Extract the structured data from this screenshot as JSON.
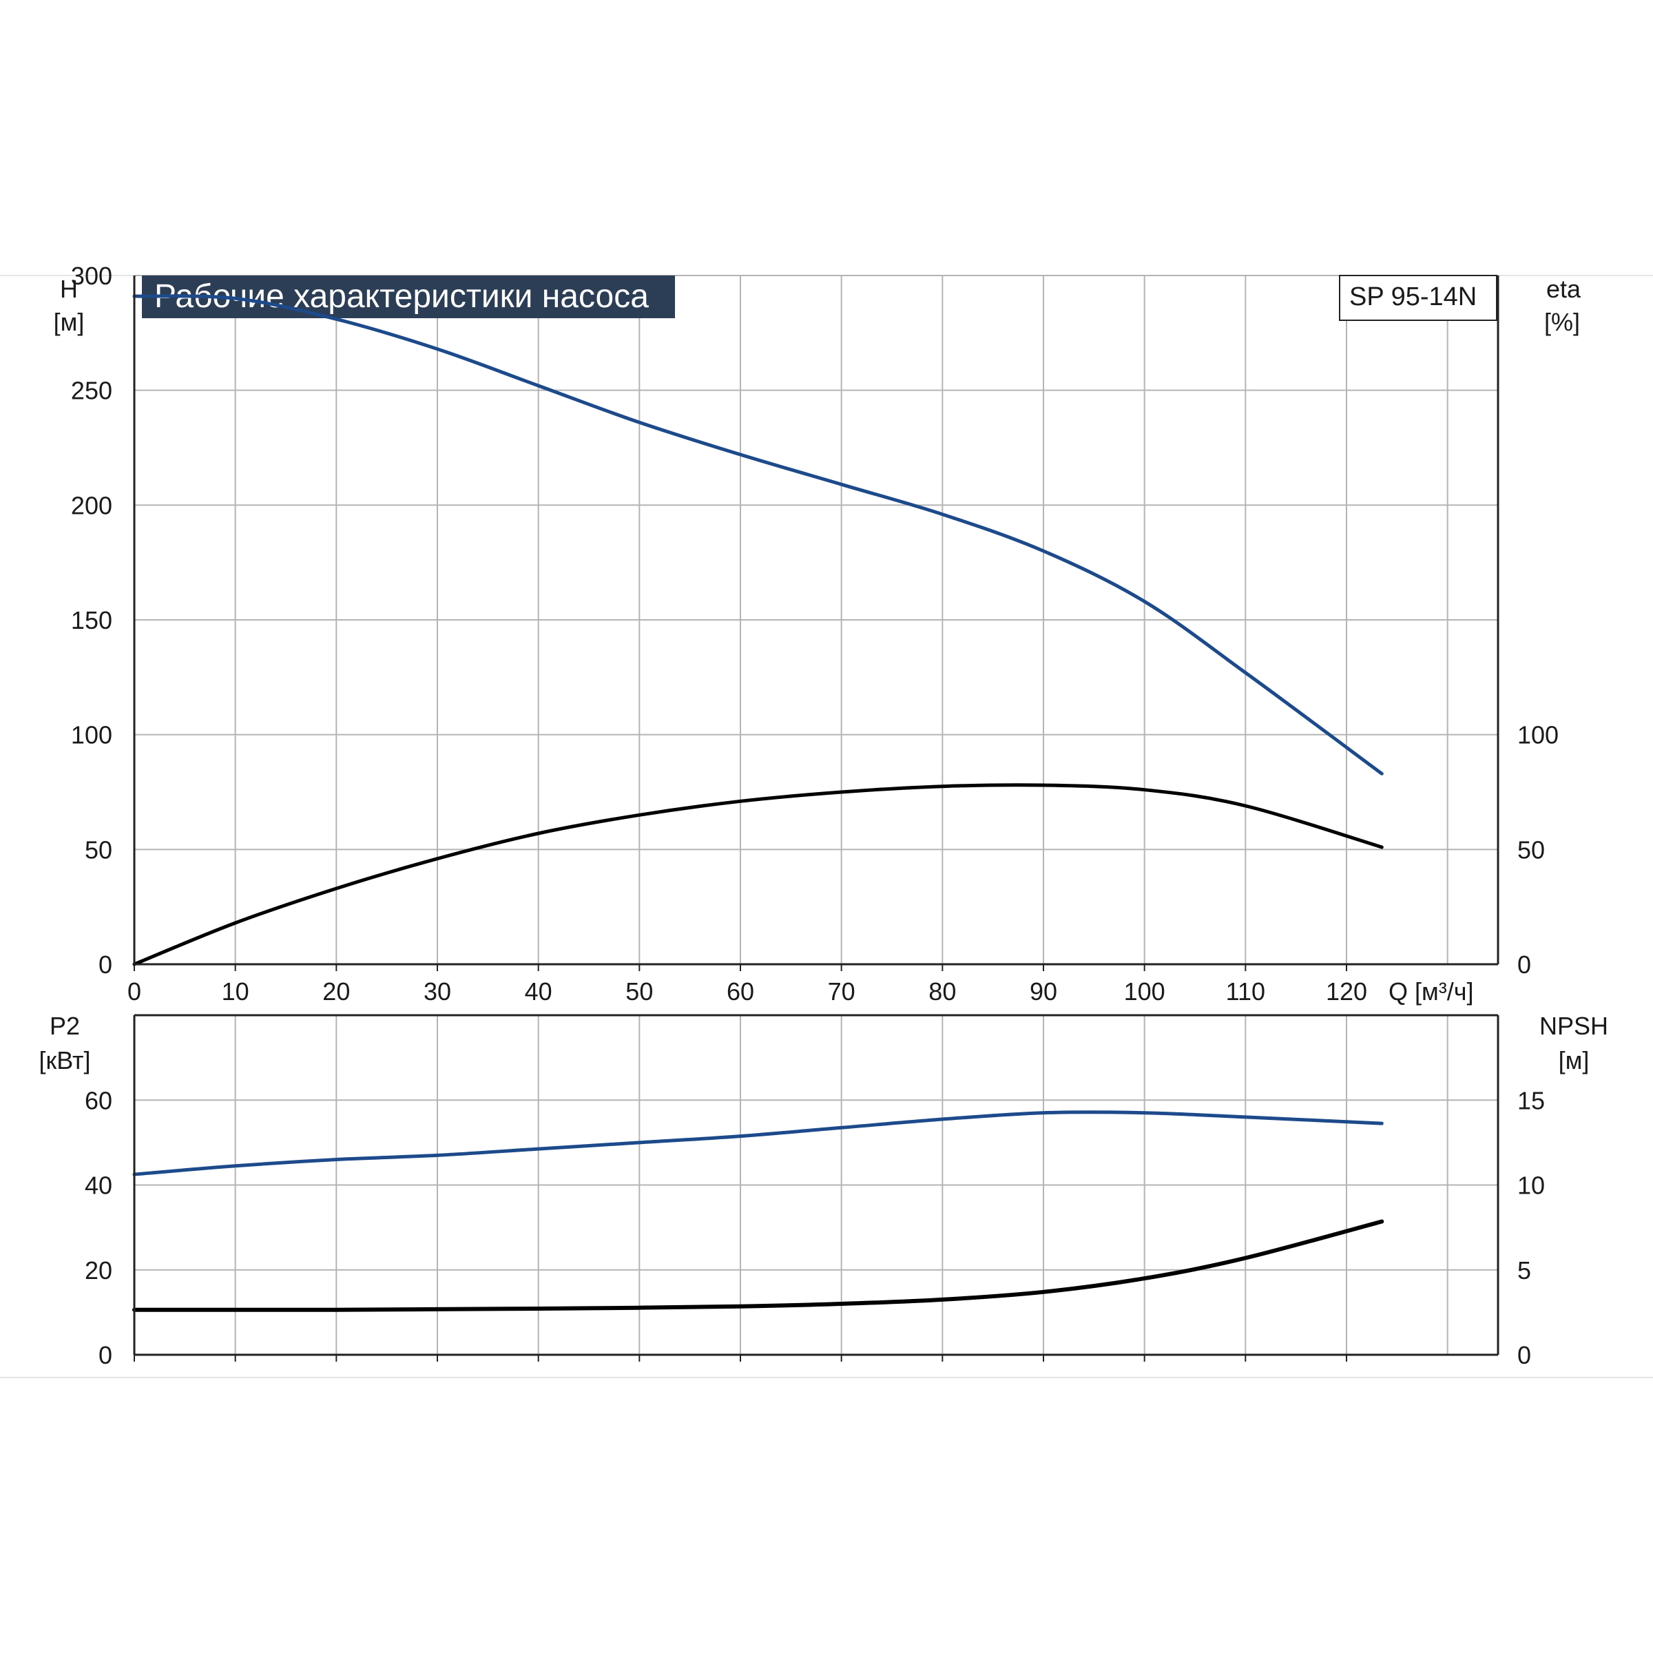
{
  "title": "Рабочие характеристики насоса",
  "model": "SP 95-14N",
  "colors": {
    "background": "#ffffff",
    "grid": "#b4b4b4",
    "axis": "#222222",
    "title_bg": "#2c3e55",
    "title_text": "#ffffff",
    "blue_curve": "#1d4a8a",
    "black_curve": "#000000"
  },
  "x_axis": {
    "label": "Q [м³/ч]",
    "range": [
      0,
      135
    ],
    "ticks": [
      0,
      10,
      20,
      30,
      40,
      50,
      60,
      70,
      80,
      90,
      100,
      110,
      120
    ]
  },
  "top_panel": {
    "left_axis": {
      "name": "H",
      "unit": "[м]",
      "range": [
        0,
        300
      ],
      "ticks": [
        0,
        50,
        100,
        150,
        200,
        250,
        300
      ]
    },
    "right_axis": {
      "name": "eta",
      "unit": "[%]",
      "range": [
        0,
        300
      ],
      "ticks": [
        0,
        50,
        100
      ]
    }
  },
  "bottom_panel": {
    "left_axis": {
      "name": "P2",
      "unit": "[кВт]",
      "range": [
        0,
        80
      ],
      "ticks": [
        0,
        20,
        40,
        60
      ]
    },
    "right_axis": {
      "name": "NPSH",
      "unit": "[м]",
      "range": [
        0,
        20
      ],
      "ticks": [
        0,
        5,
        10,
        15
      ]
    }
  },
  "chart_data": [
    {
      "type": "line",
      "panel": "top",
      "title": "Рабочие характеристики насоса",
      "xlabel": "Q [м³/ч]",
      "ylabel": "H [м]",
      "y2label": "eta [%]",
      "xlim": [
        0,
        135
      ],
      "ylim": [
        0,
        300
      ],
      "grid": true,
      "series": [
        {
          "axis": "left",
          "color": "#1d4a8a",
          "x": [
            0,
            10,
            20,
            30,
            40,
            50,
            60,
            70,
            80,
            90,
            100,
            110,
            123.5
          ],
          "y": [
            291,
            290,
            281,
            268,
            252,
            236,
            222,
            209,
            196,
            180,
            158,
            127,
            83
          ]
        },
        {
          "axis": "right",
          "color": "#000000",
          "x": [
            0,
            10,
            20,
            30,
            40,
            50,
            60,
            70,
            80,
            90,
            100,
            110,
            123.5
          ],
          "y": [
            0,
            18,
            33,
            46,
            57,
            65,
            71,
            75,
            77.5,
            78,
            76,
            69,
            51
          ]
        }
      ]
    },
    {
      "type": "line",
      "panel": "bottom",
      "xlabel": "Q [м³/ч]",
      "ylabel": "P2 [кВт]",
      "y2label": "NPSH [м]",
      "xlim": [
        0,
        135
      ],
      "ylim": [
        0,
        80
      ],
      "grid": true,
      "series": [
        {
          "axis": "left",
          "color": "#1d4a8a",
          "x": [
            0,
            10,
            20,
            30,
            40,
            50,
            60,
            70,
            80,
            90,
            100,
            110,
            123.5
          ],
          "y": [
            42.5,
            44.5,
            46,
            47,
            48.5,
            50,
            51.5,
            53.5,
            55.5,
            57,
            57,
            56,
            54.5
          ]
        },
        {
          "axis": "right",
          "color": "#000000",
          "x": [
            0,
            10,
            20,
            30,
            40,
            50,
            60,
            70,
            80,
            90,
            100,
            110,
            123.5
          ],
          "y": [
            2.65,
            2.65,
            2.65,
            2.68,
            2.72,
            2.77,
            2.85,
            3.0,
            3.25,
            3.7,
            4.5,
            5.7,
            7.85
          ]
        }
      ]
    }
  ]
}
